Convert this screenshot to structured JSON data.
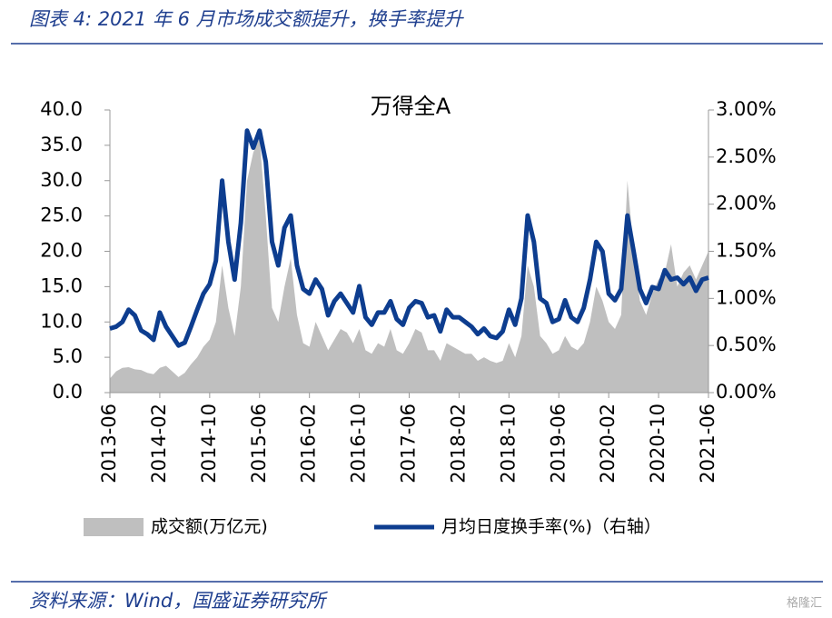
{
  "header": {
    "title": "图表 4:  2021 年 6 月市场成交额提升，换手率提升"
  },
  "chart_data": {
    "type": "combo",
    "title": "万得全A",
    "categories": [
      "2013-06",
      null,
      null,
      null,
      null,
      null,
      null,
      null,
      "2014-02",
      null,
      null,
      null,
      null,
      null,
      null,
      null,
      "2014-10",
      null,
      null,
      null,
      null,
      null,
      null,
      null,
      "2015-06",
      null,
      null,
      null,
      null,
      null,
      null,
      null,
      "2016-02",
      null,
      null,
      null,
      null,
      null,
      null,
      null,
      "2016-10",
      null,
      null,
      null,
      null,
      null,
      null,
      null,
      "2017-06",
      null,
      null,
      null,
      null,
      null,
      null,
      null,
      "2018-02",
      null,
      null,
      null,
      null,
      null,
      null,
      null,
      "2018-10",
      null,
      null,
      null,
      null,
      null,
      null,
      null,
      "2019-06",
      null,
      null,
      null,
      null,
      null,
      null,
      null,
      "2020-02",
      null,
      null,
      null,
      null,
      null,
      null,
      null,
      "2020-10",
      null,
      null,
      null,
      null,
      null,
      null,
      null,
      "2021-06"
    ],
    "series": [
      {
        "name": "成交额(万亿元)",
        "type": "area",
        "color": "#bfbfbf",
        "values": [
          2,
          3,
          3.5,
          3.6,
          3.3,
          3.2,
          2.8,
          2.6,
          3.5,
          3.8,
          3,
          2.2,
          2.8,
          4,
          5,
          6.5,
          7.5,
          10,
          18,
          12,
          8,
          15,
          30,
          34,
          36,
          25,
          12,
          10,
          15,
          19,
          11,
          7,
          6.5,
          10,
          8,
          6,
          7.5,
          9,
          8.5,
          7,
          9,
          6,
          5.5,
          7,
          6.5,
          9,
          6,
          5.5,
          7,
          9,
          8.5,
          6,
          6,
          4.5,
          7,
          6.5,
          6,
          5.5,
          5.5,
          4.5,
          5,
          4.5,
          4.2,
          4.5,
          7,
          5,
          8,
          18,
          15,
          8,
          7,
          5.5,
          6,
          8,
          6.5,
          6,
          7,
          10,
          15,
          13,
          10,
          9,
          11,
          30,
          20,
          13,
          11,
          14,
          16,
          17,
          21,
          15,
          17,
          18,
          16,
          18,
          20
        ]
      },
      {
        "name": "月均日度换手率(%)（右轴）",
        "type": "line",
        "axis": "y2",
        "color": "#0d3d8f",
        "values": [
          0.68,
          0.7,
          0.75,
          0.88,
          0.82,
          0.66,
          0.62,
          0.56,
          0.85,
          0.7,
          0.6,
          0.5,
          0.53,
          0.7,
          0.88,
          1.05,
          1.15,
          1.4,
          2.25,
          1.6,
          1.2,
          1.8,
          2.78,
          2.6,
          2.78,
          2.45,
          1.6,
          1.35,
          1.75,
          1.88,
          1.35,
          1.1,
          1.05,
          1.2,
          1.1,
          0.82,
          0.97,
          1.05,
          0.95,
          0.85,
          1.13,
          0.8,
          0.72,
          0.85,
          0.85,
          0.97,
          0.78,
          0.72,
          0.9,
          0.97,
          0.95,
          0.8,
          0.82,
          0.65,
          0.88,
          0.8,
          0.8,
          0.75,
          0.7,
          0.62,
          0.68,
          0.6,
          0.58,
          0.65,
          0.88,
          0.72,
          1.0,
          1.88,
          1.6,
          1.0,
          0.95,
          0.75,
          0.78,
          0.98,
          0.8,
          0.75,
          0.9,
          1.2,
          1.6,
          1.5,
          1.05,
          0.98,
          1.1,
          1.88,
          1.5,
          1.1,
          0.95,
          1.12,
          1.1,
          1.3,
          1.2,
          1.22,
          1.15,
          1.22,
          1.08,
          1.2,
          1.22
        ]
      }
    ],
    "ylim": [
      0,
      40
    ],
    "yticks": [
      {
        "value": 0,
        "label": "0.0"
      },
      {
        "value": 5,
        "label": "5.0"
      },
      {
        "value": 10,
        "label": "10.0"
      },
      {
        "value": 15,
        "label": "15.0"
      },
      {
        "value": 20,
        "label": "20.0"
      },
      {
        "value": 25,
        "label": "25.0"
      },
      {
        "value": 30,
        "label": "30.0"
      },
      {
        "value": 35,
        "label": "35.0"
      },
      {
        "value": 40,
        "label": "40.0"
      }
    ],
    "y2lim": [
      0,
      3
    ],
    "y2ticks": [
      {
        "value": 0,
        "label": "0.00%"
      },
      {
        "value": 0.5,
        "label": "0.50%"
      },
      {
        "value": 1,
        "label": "1.00%"
      },
      {
        "value": 1.5,
        "label": "1.50%"
      },
      {
        "value": 2,
        "label": "2.00%"
      },
      {
        "value": 2.5,
        "label": "2.50%"
      },
      {
        "value": 3,
        "label": "3.00%"
      }
    ]
  },
  "footer": {
    "source": "资料来源：Wind，国盛证券研究所",
    "watermark": "格隆汇"
  }
}
